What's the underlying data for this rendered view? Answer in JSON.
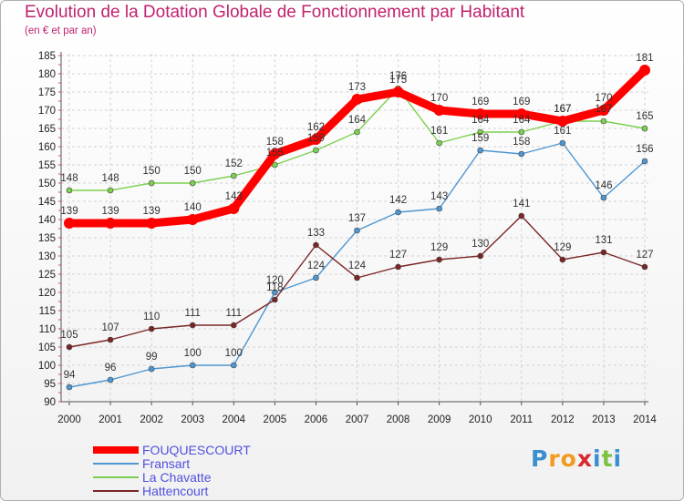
{
  "title": "Evolution de la Dotation Globale de Fonctionnement par Habitant",
  "subtitle": "(en € et par an)",
  "logo": {
    "letters": [
      "P",
      "r",
      "o",
      "x",
      "i",
      "t",
      "i"
    ],
    "colors": [
      "#3a8fd0",
      "#f39a1e",
      "#f39a1e",
      "#d8282e",
      "#3a8fd0",
      "#7cc242",
      "#3a8fd0"
    ]
  },
  "chart_data": {
    "type": "line",
    "title": "Evolution de la Dotation Globale de Fonctionnement par Habitant",
    "subtitle": "(en € et par an)",
    "xlabel": "",
    "ylabel": "",
    "x": [
      "2000",
      "2001",
      "2002",
      "2003",
      "2004",
      "2005",
      "2006",
      "2007",
      "2008",
      "2009",
      "2010",
      "2011",
      "2012",
      "2013",
      "2014"
    ],
    "ylim": [
      90,
      185
    ],
    "yticks": [
      90,
      95,
      100,
      105,
      110,
      115,
      120,
      125,
      130,
      135,
      140,
      145,
      150,
      155,
      160,
      165,
      170,
      175,
      180,
      185
    ],
    "grid": true,
    "legend_position": "bottom-left",
    "series": [
      {
        "name": "FOUQUESCOURT",
        "color": "#ff0000",
        "emphasis": true,
        "values": [
          139,
          139,
          139,
          140,
          143,
          158,
          162,
          173,
          175,
          170,
          169,
          169,
          167,
          170,
          181
        ]
      },
      {
        "name": "Fransart",
        "color": "#4e96d1",
        "emphasis": false,
        "values": [
          94,
          96,
          99,
          100,
          100,
          120,
          124,
          137,
          142,
          143,
          159,
          158,
          161,
          146,
          156
        ]
      },
      {
        "name": "La Chavatte",
        "color": "#7cd04f",
        "emphasis": false,
        "values": [
          148,
          148,
          150,
          150,
          152,
          155,
          159,
          164,
          176,
          161,
          164,
          164,
          167,
          167,
          165
        ]
      },
      {
        "name": "Hattencourt",
        "color": "#7a2626",
        "emphasis": false,
        "values": [
          105,
          107,
          110,
          111,
          111,
          118,
          133,
          124,
          127,
          129,
          130,
          141,
          129,
          131,
          127
        ]
      }
    ]
  }
}
